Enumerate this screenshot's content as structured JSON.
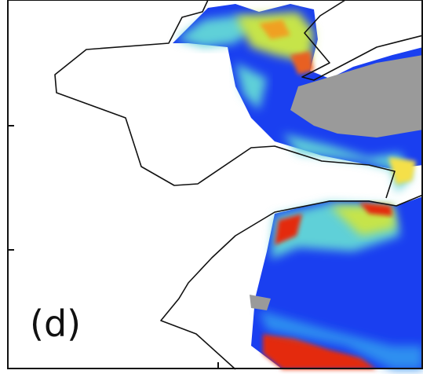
{
  "panel_label": "(d)"
}
